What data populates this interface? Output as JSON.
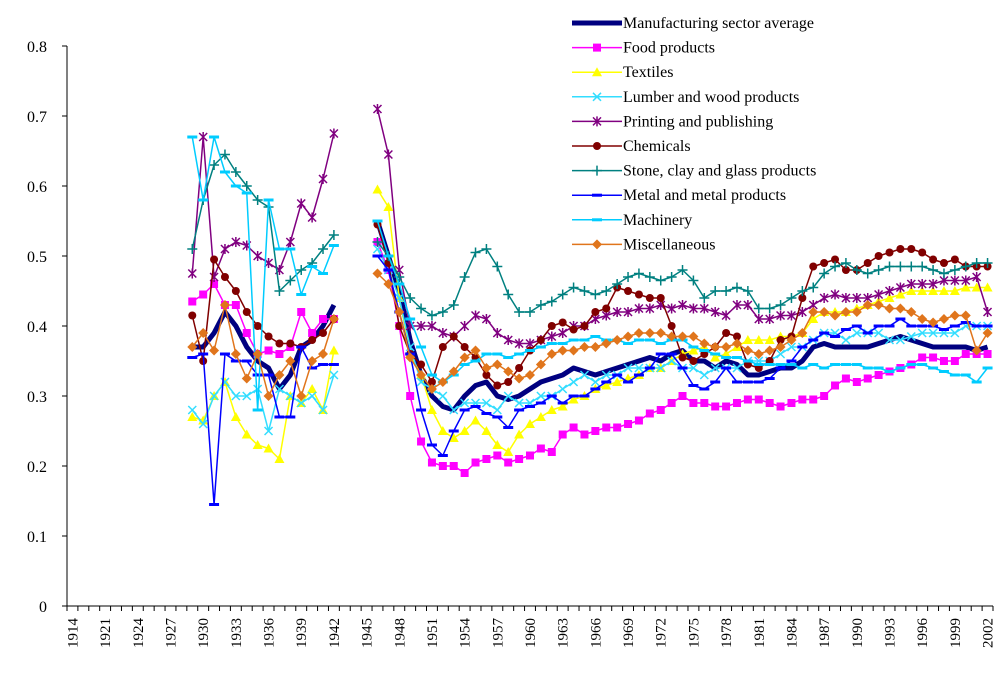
{
  "chart_data": {
    "type": "line",
    "categories": [
      "1914",
      null,
      null,
      "1921",
      null,
      null,
      "1924",
      null,
      null,
      "1927",
      null,
      null,
      "1930",
      null,
      null,
      "1933",
      null,
      null,
      "1936",
      null,
      null,
      "1939",
      null,
      null,
      "1942",
      null,
      null,
      "1945",
      null,
      null,
      "1948",
      null,
      null,
      "1951",
      null,
      null,
      "1954",
      null,
      null,
      "1957",
      null,
      null,
      "1960",
      null,
      null,
      "1963",
      null,
      null,
      "1966",
      null,
      null,
      "1969",
      null,
      null,
      "1972",
      null,
      null,
      "1975",
      null,
      null,
      "1978",
      null,
      null,
      "1981",
      null,
      null,
      "1984",
      null,
      null,
      "1987",
      null,
      null,
      "1990",
      null,
      null,
      "1993",
      null,
      null,
      "1996",
      null,
      null,
      "1999",
      null,
      null,
      "2002"
    ],
    "ylim": [
      0,
      0.8
    ],
    "yticks": [
      0,
      0.1,
      0.2,
      0.3,
      0.4,
      0.5,
      0.6,
      0.7,
      0.8
    ],
    "grid": false,
    "legend": "top-right",
    "series": [
      {
        "name": "Manufacturing sector average",
        "color": "#000080",
        "marker": "none",
        "line_width": 5,
        "values": [
          null,
          null,
          null,
          null,
          null,
          null,
          null,
          null,
          null,
          null,
          null,
          0.37,
          0.37,
          0.39,
          0.42,
          0.4,
          0.37,
          0.35,
          0.34,
          0.31,
          0.33,
          0.37,
          0.38,
          0.4,
          0.43,
          null,
          null,
          null,
          0.55,
          0.5,
          0.45,
          0.38,
          0.33,
          0.3,
          0.285,
          0.28,
          0.3,
          0.315,
          0.32,
          0.3,
          0.295,
          0.3,
          0.31,
          0.32,
          0.325,
          0.33,
          0.34,
          0.335,
          0.33,
          0.335,
          0.34,
          0.345,
          0.35,
          0.355,
          0.35,
          0.36,
          0.365,
          0.35,
          0.35,
          0.34,
          0.35,
          0.345,
          0.33,
          0.33,
          0.335,
          0.34,
          0.34,
          0.35,
          0.37,
          0.375,
          0.37,
          0.37,
          0.37,
          0.37,
          0.375,
          0.38,
          0.385,
          0.38,
          0.375,
          0.37,
          0.37,
          0.37,
          0.37,
          0.365,
          0.37
        ]
      },
      {
        "name": "Food products",
        "color": "#ff00ff",
        "marker": "square",
        "line_width": 1.5,
        "values": [
          null,
          null,
          null,
          null,
          null,
          null,
          null,
          null,
          null,
          null,
          null,
          0.435,
          0.445,
          0.46,
          0.43,
          0.43,
          0.39,
          0.36,
          0.365,
          0.36,
          0.37,
          0.42,
          0.39,
          0.41,
          0.41,
          null,
          null,
          null,
          0.52,
          0.48,
          0.4,
          0.3,
          0.235,
          0.205,
          0.2,
          0.2,
          0.19,
          0.205,
          0.21,
          0.215,
          0.205,
          0.21,
          0.215,
          0.225,
          0.22,
          0.245,
          0.255,
          0.245,
          0.25,
          0.255,
          0.255,
          0.26,
          0.265,
          0.275,
          0.28,
          0.29,
          0.3,
          0.29,
          0.29,
          0.285,
          0.285,
          0.29,
          0.295,
          0.295,
          0.29,
          0.285,
          0.29,
          0.295,
          0.295,
          0.3,
          0.315,
          0.325,
          0.32,
          0.325,
          0.33,
          0.335,
          0.34,
          0.345,
          0.355,
          0.355,
          0.35,
          0.35,
          0.36,
          0.36,
          0.36
        ]
      },
      {
        "name": "Textiles",
        "color": "#ffff00",
        "marker": "triangle",
        "line_width": 1.5,
        "values": [
          null,
          null,
          null,
          null,
          null,
          null,
          null,
          null,
          null,
          null,
          null,
          0.27,
          0.265,
          0.3,
          0.32,
          0.27,
          0.245,
          0.23,
          0.225,
          0.21,
          0.3,
          0.29,
          0.31,
          0.28,
          0.365,
          null,
          null,
          null,
          0.595,
          0.57,
          0.44,
          0.36,
          0.33,
          0.28,
          0.25,
          0.24,
          0.25,
          0.265,
          0.25,
          0.23,
          0.22,
          0.245,
          0.26,
          0.27,
          0.28,
          0.285,
          0.295,
          0.3,
          0.31,
          0.315,
          0.32,
          0.325,
          0.33,
          0.34,
          0.34,
          0.35,
          0.36,
          0.365,
          0.37,
          0.355,
          0.36,
          0.37,
          0.38,
          0.38,
          0.38,
          0.385,
          0.385,
          0.39,
          0.41,
          0.42,
          0.42,
          0.42,
          0.425,
          0.43,
          0.435,
          0.44,
          0.445,
          0.45,
          0.45,
          0.45,
          0.45,
          0.45,
          0.455,
          0.455,
          0.455
        ]
      },
      {
        "name": "Lumber and wood products",
        "color": "#33ddff",
        "marker": "x",
        "line_width": 1.5,
        "values": [
          null,
          null,
          null,
          null,
          null,
          null,
          null,
          null,
          null,
          null,
          null,
          0.28,
          0.26,
          0.3,
          0.32,
          0.3,
          0.3,
          0.31,
          0.25,
          0.31,
          0.3,
          0.29,
          0.3,
          0.28,
          0.33,
          null,
          null,
          null,
          0.51,
          0.48,
          0.44,
          0.37,
          0.32,
          0.31,
          0.3,
          0.28,
          0.29,
          0.29,
          0.29,
          0.28,
          0.3,
          0.29,
          0.29,
          0.3,
          0.3,
          0.31,
          0.32,
          0.33,
          0.32,
          0.33,
          0.33,
          0.34,
          0.34,
          0.34,
          0.34,
          0.35,
          0.34,
          0.34,
          0.33,
          0.34,
          0.34,
          0.34,
          0.35,
          0.35,
          0.35,
          0.36,
          0.37,
          0.37,
          0.38,
          0.39,
          0.39,
          0.38,
          0.39,
          0.39,
          0.39,
          0.38,
          0.38,
          0.385,
          0.39,
          0.39,
          0.39,
          0.39,
          0.4,
          0.4,
          0.4
        ]
      },
      {
        "name": "Printing and publishing",
        "color": "#800080",
        "marker": "star",
        "line_width": 1.5,
        "values": [
          null,
          null,
          null,
          null,
          null,
          null,
          null,
          null,
          null,
          null,
          null,
          0.475,
          0.67,
          0.47,
          0.51,
          0.52,
          0.515,
          0.5,
          0.49,
          0.48,
          0.52,
          0.575,
          0.555,
          0.61,
          0.675,
          null,
          null,
          null,
          0.71,
          0.645,
          0.48,
          0.4,
          0.4,
          0.4,
          0.39,
          0.385,
          0.4,
          0.415,
          0.41,
          0.39,
          0.38,
          0.375,
          0.375,
          0.38,
          0.385,
          0.39,
          0.4,
          0.4,
          0.41,
          0.415,
          0.42,
          0.42,
          0.425,
          0.425,
          0.43,
          0.425,
          0.43,
          0.425,
          0.425,
          0.42,
          0.415,
          0.43,
          0.43,
          0.41,
          0.41,
          0.415,
          0.415,
          0.42,
          0.43,
          0.44,
          0.445,
          0.44,
          0.44,
          0.44,
          0.445,
          0.45,
          0.455,
          0.46,
          0.46,
          0.46,
          0.465,
          0.465,
          0.465,
          0.47,
          0.42
        ]
      },
      {
        "name": "Chemicals",
        "color": "#800000",
        "marker": "circle",
        "line_width": 1.5,
        "values": [
          null,
          null,
          null,
          null,
          null,
          null,
          null,
          null,
          null,
          null,
          null,
          0.415,
          0.35,
          0.495,
          0.47,
          0.45,
          0.42,
          0.4,
          0.385,
          0.375,
          0.375,
          0.37,
          0.38,
          0.39,
          0.41,
          null,
          null,
          null,
          0.545,
          0.49,
          0.4,
          0.36,
          0.345,
          0.32,
          0.37,
          0.385,
          0.37,
          0.355,
          0.33,
          0.315,
          0.32,
          0.34,
          0.365,
          0.38,
          0.4,
          0.405,
          0.395,
          0.4,
          0.42,
          0.425,
          0.455,
          0.45,
          0.445,
          0.44,
          0.44,
          0.4,
          0.355,
          0.35,
          0.36,
          0.37,
          0.39,
          0.385,
          0.345,
          0.34,
          0.35,
          0.38,
          0.385,
          0.44,
          0.485,
          0.49,
          0.495,
          0.48,
          0.48,
          0.49,
          0.5,
          0.505,
          0.51,
          0.51,
          0.505,
          0.495,
          0.49,
          0.495,
          0.485,
          0.485,
          0.485
        ]
      },
      {
        "name": "Stone, clay and glass products",
        "color": "#008080",
        "marker": "plus",
        "line_width": 1.5,
        "values": [
          null,
          null,
          null,
          null,
          null,
          null,
          null,
          null,
          null,
          null,
          null,
          0.51,
          0.58,
          0.63,
          0.645,
          0.62,
          0.6,
          0.58,
          0.57,
          0.45,
          0.465,
          0.48,
          0.49,
          0.51,
          0.53,
          null,
          null,
          null,
          0.52,
          0.5,
          0.47,
          0.44,
          0.425,
          0.415,
          0.42,
          0.43,
          0.47,
          0.505,
          0.51,
          0.485,
          0.445,
          0.42,
          0.42,
          0.43,
          0.435,
          0.445,
          0.455,
          0.45,
          0.445,
          0.45,
          0.46,
          0.47,
          0.475,
          0.47,
          0.465,
          0.47,
          0.48,
          0.465,
          0.44,
          0.45,
          0.45,
          0.455,
          0.45,
          0.425,
          0.425,
          0.43,
          0.44,
          0.45,
          0.455,
          0.475,
          0.485,
          0.49,
          0.48,
          0.475,
          0.48,
          0.485,
          0.485,
          0.485,
          0.485,
          0.48,
          0.475,
          0.48,
          0.485,
          0.49,
          0.49
        ]
      },
      {
        "name": "Metal and metal products",
        "color": "#0000ff",
        "marker": "dash",
        "line_width": 1.5,
        "values": [
          null,
          null,
          null,
          null,
          null,
          null,
          null,
          null,
          null,
          null,
          null,
          0.355,
          0.36,
          0.145,
          0.36,
          0.35,
          0.35,
          0.33,
          0.33,
          0.27,
          0.27,
          0.37,
          0.34,
          0.345,
          0.345,
          null,
          null,
          null,
          0.5,
          0.48,
          0.42,
          0.36,
          0.28,
          0.23,
          0.215,
          0.25,
          0.28,
          0.285,
          0.275,
          0.27,
          0.255,
          0.28,
          0.285,
          0.29,
          0.3,
          0.29,
          0.3,
          0.3,
          0.31,
          0.32,
          0.33,
          0.32,
          0.33,
          0.34,
          0.36,
          0.36,
          0.34,
          0.315,
          0.31,
          0.32,
          0.34,
          0.32,
          0.32,
          0.32,
          0.325,
          0.34,
          0.35,
          0.37,
          0.38,
          0.39,
          0.385,
          0.395,
          0.4,
          0.39,
          0.4,
          0.4,
          0.41,
          0.4,
          0.4,
          0.4,
          0.395,
          0.4,
          0.405,
          0.4,
          0.4
        ]
      },
      {
        "name": "Machinery",
        "color": "#00ccff",
        "marker": "dash",
        "line_width": 1.5,
        "values": [
          null,
          null,
          null,
          null,
          null,
          null,
          null,
          null,
          null,
          null,
          null,
          0.67,
          0.58,
          0.67,
          0.62,
          0.6,
          0.59,
          0.28,
          0.58,
          0.51,
          0.51,
          0.445,
          0.485,
          0.475,
          0.515,
          null,
          null,
          null,
          0.55,
          0.5,
          0.46,
          0.41,
          0.37,
          0.33,
          0.32,
          0.33,
          0.345,
          0.35,
          0.36,
          0.36,
          0.355,
          0.36,
          0.365,
          0.37,
          0.375,
          0.375,
          0.38,
          0.38,
          0.385,
          0.38,
          0.38,
          0.375,
          0.38,
          0.38,
          0.375,
          0.38,
          0.38,
          0.37,
          0.365,
          0.36,
          0.355,
          0.355,
          0.35,
          0.345,
          0.345,
          0.345,
          0.345,
          0.34,
          0.345,
          0.34,
          0.345,
          0.345,
          0.345,
          0.34,
          0.34,
          0.335,
          0.34,
          0.345,
          0.345,
          0.34,
          0.335,
          0.33,
          0.33,
          0.32,
          0.34
        ]
      },
      {
        "name": "Miscellaneous",
        "color": "#e0751c",
        "marker": "diamond",
        "line_width": 1.5,
        "values": [
          null,
          null,
          null,
          null,
          null,
          null,
          null,
          null,
          null,
          null,
          null,
          0.37,
          0.39,
          0.365,
          0.43,
          0.36,
          0.325,
          0.36,
          0.3,
          0.33,
          0.35,
          0.3,
          0.35,
          0.36,
          0.41,
          null,
          null,
          null,
          0.475,
          0.46,
          0.42,
          0.355,
          0.33,
          0.31,
          0.32,
          0.335,
          0.355,
          0.365,
          0.34,
          0.345,
          0.335,
          0.325,
          0.33,
          0.345,
          0.36,
          0.365,
          0.365,
          0.37,
          0.37,
          0.375,
          0.38,
          0.385,
          0.39,
          0.39,
          0.39,
          0.385,
          0.385,
          0.385,
          0.375,
          0.37,
          0.37,
          0.375,
          0.365,
          0.36,
          0.365,
          0.37,
          0.38,
          0.39,
          0.42,
          0.42,
          0.415,
          0.42,
          0.42,
          0.43,
          0.43,
          0.425,
          0.425,
          0.42,
          0.41,
          0.405,
          0.41,
          0.415,
          0.415,
          0.365,
          0.39
        ]
      }
    ]
  }
}
